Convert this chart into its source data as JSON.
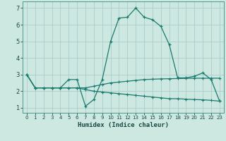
{
  "xlabel": "Humidex (Indice chaleur)",
  "background_color": "#cce8e0",
  "grid_color": "#aacccc",
  "line_color": "#1a7a6e",
  "xlim": [
    -0.5,
    23.5
  ],
  "ylim": [
    0.7,
    7.4
  ],
  "xticks": [
    0,
    1,
    2,
    3,
    4,
    5,
    6,
    7,
    8,
    9,
    10,
    11,
    12,
    13,
    14,
    15,
    16,
    17,
    18,
    19,
    20,
    21,
    22,
    23
  ],
  "yticks": [
    1,
    2,
    3,
    4,
    5,
    6,
    7
  ],
  "series1_x": [
    0,
    1,
    2,
    3,
    4,
    5,
    6,
    7,
    8,
    9,
    10,
    11,
    12,
    13,
    14,
    15,
    16,
    17,
    18,
    19,
    20,
    21,
    22,
    23
  ],
  "series1_y": [
    3.0,
    2.2,
    2.2,
    2.2,
    2.2,
    2.7,
    2.7,
    1.1,
    1.5,
    2.7,
    5.0,
    6.4,
    6.45,
    7.0,
    6.45,
    6.3,
    5.9,
    4.8,
    2.8,
    2.8,
    2.9,
    3.1,
    2.7,
    1.4
  ],
  "series2_x": [
    0,
    1,
    2,
    3,
    4,
    5,
    6,
    7,
    8,
    9,
    10,
    11,
    12,
    13,
    14,
    15,
    16,
    17,
    18,
    19,
    20,
    21,
    22,
    23
  ],
  "series2_y": [
    3.0,
    2.2,
    2.2,
    2.2,
    2.2,
    2.2,
    2.2,
    2.2,
    2.3,
    2.4,
    2.5,
    2.55,
    2.6,
    2.65,
    2.7,
    2.72,
    2.74,
    2.75,
    2.76,
    2.77,
    2.78,
    2.78,
    2.78,
    2.78
  ],
  "series3_x": [
    0,
    1,
    2,
    3,
    4,
    5,
    6,
    7,
    8,
    9,
    10,
    11,
    12,
    13,
    14,
    15,
    16,
    17,
    18,
    19,
    20,
    21,
    22,
    23
  ],
  "series3_y": [
    3.0,
    2.2,
    2.2,
    2.2,
    2.2,
    2.2,
    2.2,
    2.1,
    2.0,
    1.95,
    1.9,
    1.85,
    1.8,
    1.75,
    1.7,
    1.65,
    1.6,
    1.55,
    1.55,
    1.52,
    1.5,
    1.48,
    1.45,
    1.4
  ]
}
